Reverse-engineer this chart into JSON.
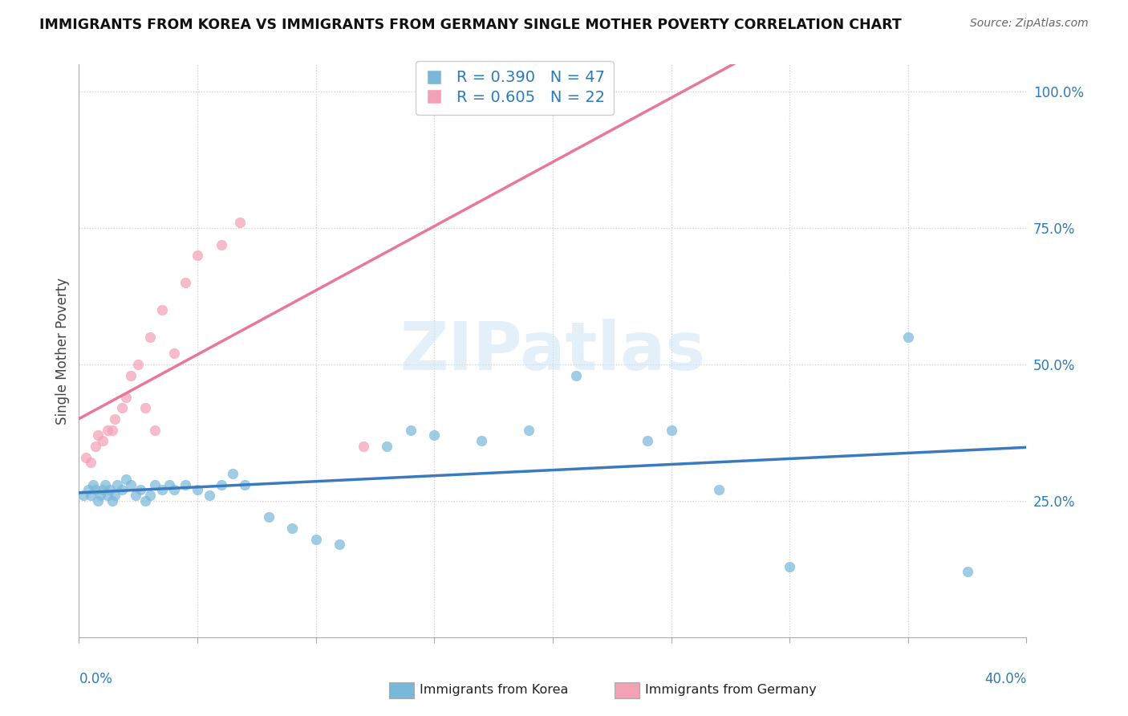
{
  "title": "IMMIGRANTS FROM KOREA VS IMMIGRANTS FROM GERMANY SINGLE MOTHER POVERTY CORRELATION CHART",
  "source": "Source: ZipAtlas.com",
  "ylabel": "Single Mother Poverty",
  "legend_korea": "R = 0.390   N = 47",
  "legend_germany": "R = 0.605   N = 22",
  "legend_label_korea": "Immigrants from Korea",
  "legend_label_germany": "Immigrants from Germany",
  "korea_color": "#7ab8d9",
  "germany_color": "#f4a0b5",
  "korea_line_color": "#3a7abf",
  "germany_line_color": "#e8789a",
  "background_color": "#ffffff",
  "xlim": [
    0.0,
    0.4
  ],
  "ylim": [
    0.0,
    1.05
  ],
  "korea_scatter_x": [
    0.002,
    0.004,
    0.005,
    0.006,
    0.007,
    0.008,
    0.009,
    0.01,
    0.011,
    0.012,
    0.013,
    0.014,
    0.015,
    0.016,
    0.018,
    0.02,
    0.022,
    0.024,
    0.026,
    0.028,
    0.03,
    0.032,
    0.035,
    0.038,
    0.04,
    0.045,
    0.05,
    0.055,
    0.06,
    0.065,
    0.07,
    0.08,
    0.09,
    0.1,
    0.11,
    0.13,
    0.14,
    0.15,
    0.17,
    0.19,
    0.21,
    0.24,
    0.25,
    0.27,
    0.3,
    0.35,
    0.375
  ],
  "korea_scatter_y": [
    0.26,
    0.27,
    0.26,
    0.28,
    0.27,
    0.25,
    0.26,
    0.27,
    0.28,
    0.26,
    0.27,
    0.25,
    0.26,
    0.28,
    0.27,
    0.29,
    0.28,
    0.26,
    0.27,
    0.25,
    0.26,
    0.28,
    0.27,
    0.28,
    0.27,
    0.28,
    0.27,
    0.26,
    0.28,
    0.3,
    0.28,
    0.22,
    0.2,
    0.18,
    0.17,
    0.35,
    0.38,
    0.37,
    0.36,
    0.38,
    0.48,
    0.36,
    0.38,
    0.27,
    0.13,
    0.55,
    0.12
  ],
  "germany_scatter_x": [
    0.003,
    0.005,
    0.007,
    0.008,
    0.01,
    0.012,
    0.014,
    0.015,
    0.018,
    0.02,
    0.022,
    0.025,
    0.028,
    0.03,
    0.032,
    0.035,
    0.04,
    0.045,
    0.05,
    0.06,
    0.068,
    0.12
  ],
  "germany_scatter_y": [
    0.33,
    0.32,
    0.35,
    0.37,
    0.36,
    0.38,
    0.38,
    0.4,
    0.42,
    0.44,
    0.48,
    0.5,
    0.42,
    0.55,
    0.38,
    0.6,
    0.52,
    0.65,
    0.7,
    0.72,
    0.76,
    0.35
  ]
}
